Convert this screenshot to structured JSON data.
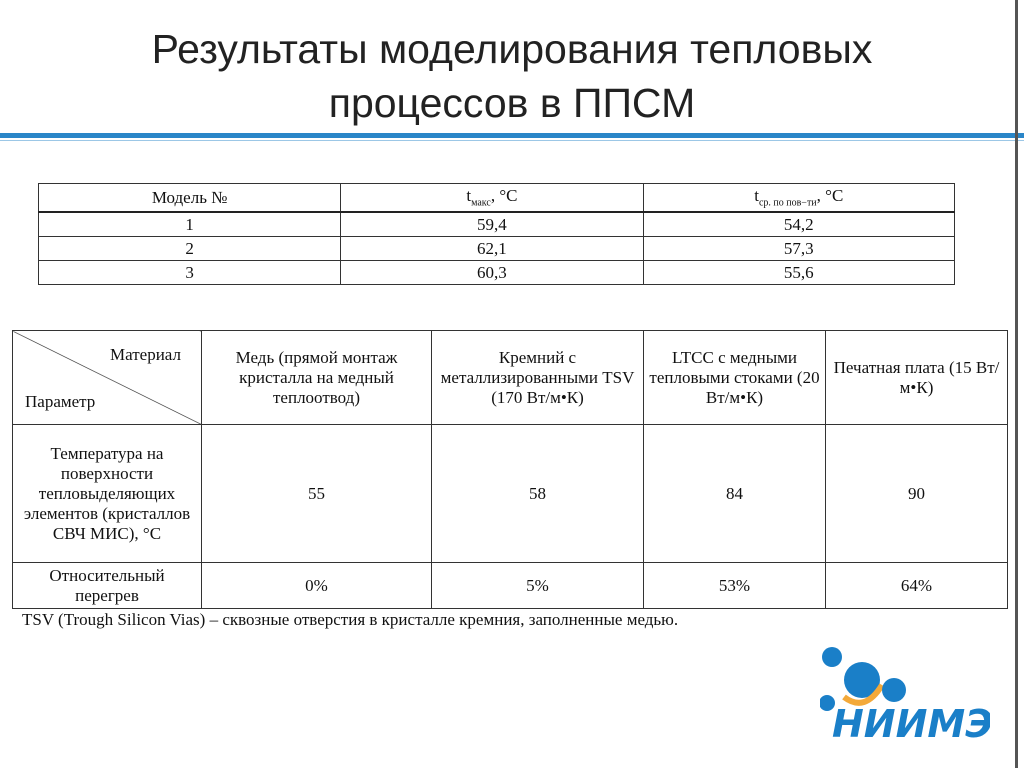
{
  "title_line1": "Результаты моделирования тепловых",
  "title_line2": "процессов в ППСМ",
  "table1": {
    "headers": {
      "model": "Модель №",
      "tmax": "t",
      "tmax_sub": "макс",
      "tmax_unit": ", °C",
      "tavg": "t",
      "tavg_sub": "ср. по пов−ти",
      "tavg_unit": ", °C"
    },
    "rows": [
      [
        "1",
        "59,4",
        "54,2"
      ],
      [
        "2",
        "62,1",
        "57,3"
      ],
      [
        "3",
        "60,3",
        "55,6"
      ]
    ]
  },
  "table2": {
    "corner_top": "Материал",
    "corner_bottom": "Параметр",
    "columns": [
      "Медь (прямой монтаж кристалла на медный теплоотвод)",
      "Кремний с металлизированными TSV (170 Вт/м•К)",
      "LTCC с медными тепловыми стоками (20 Вт/м•К)",
      "Печатная плата (15 Вт/м•К)"
    ],
    "rows": [
      {
        "label": "Температура на поверхности тепловыделяющих элементов (кристаллов СВЧ МИС), °C",
        "values": [
          "55",
          "58",
          "84",
          "90"
        ]
      },
      {
        "label": "Относительный перегрев",
        "values": [
          "0%",
          "5%",
          "53%",
          "64%"
        ]
      }
    ]
  },
  "note": "TSV (Trough Silicon Vias) – сквозные отверстия в кристалле кремния, заполненные медью.",
  "logo_text": "НИИМЭ",
  "colors": {
    "accent": "#2a86c8",
    "logo_blue": "#1a7fc8",
    "logo_orange": "#f3a93a"
  }
}
